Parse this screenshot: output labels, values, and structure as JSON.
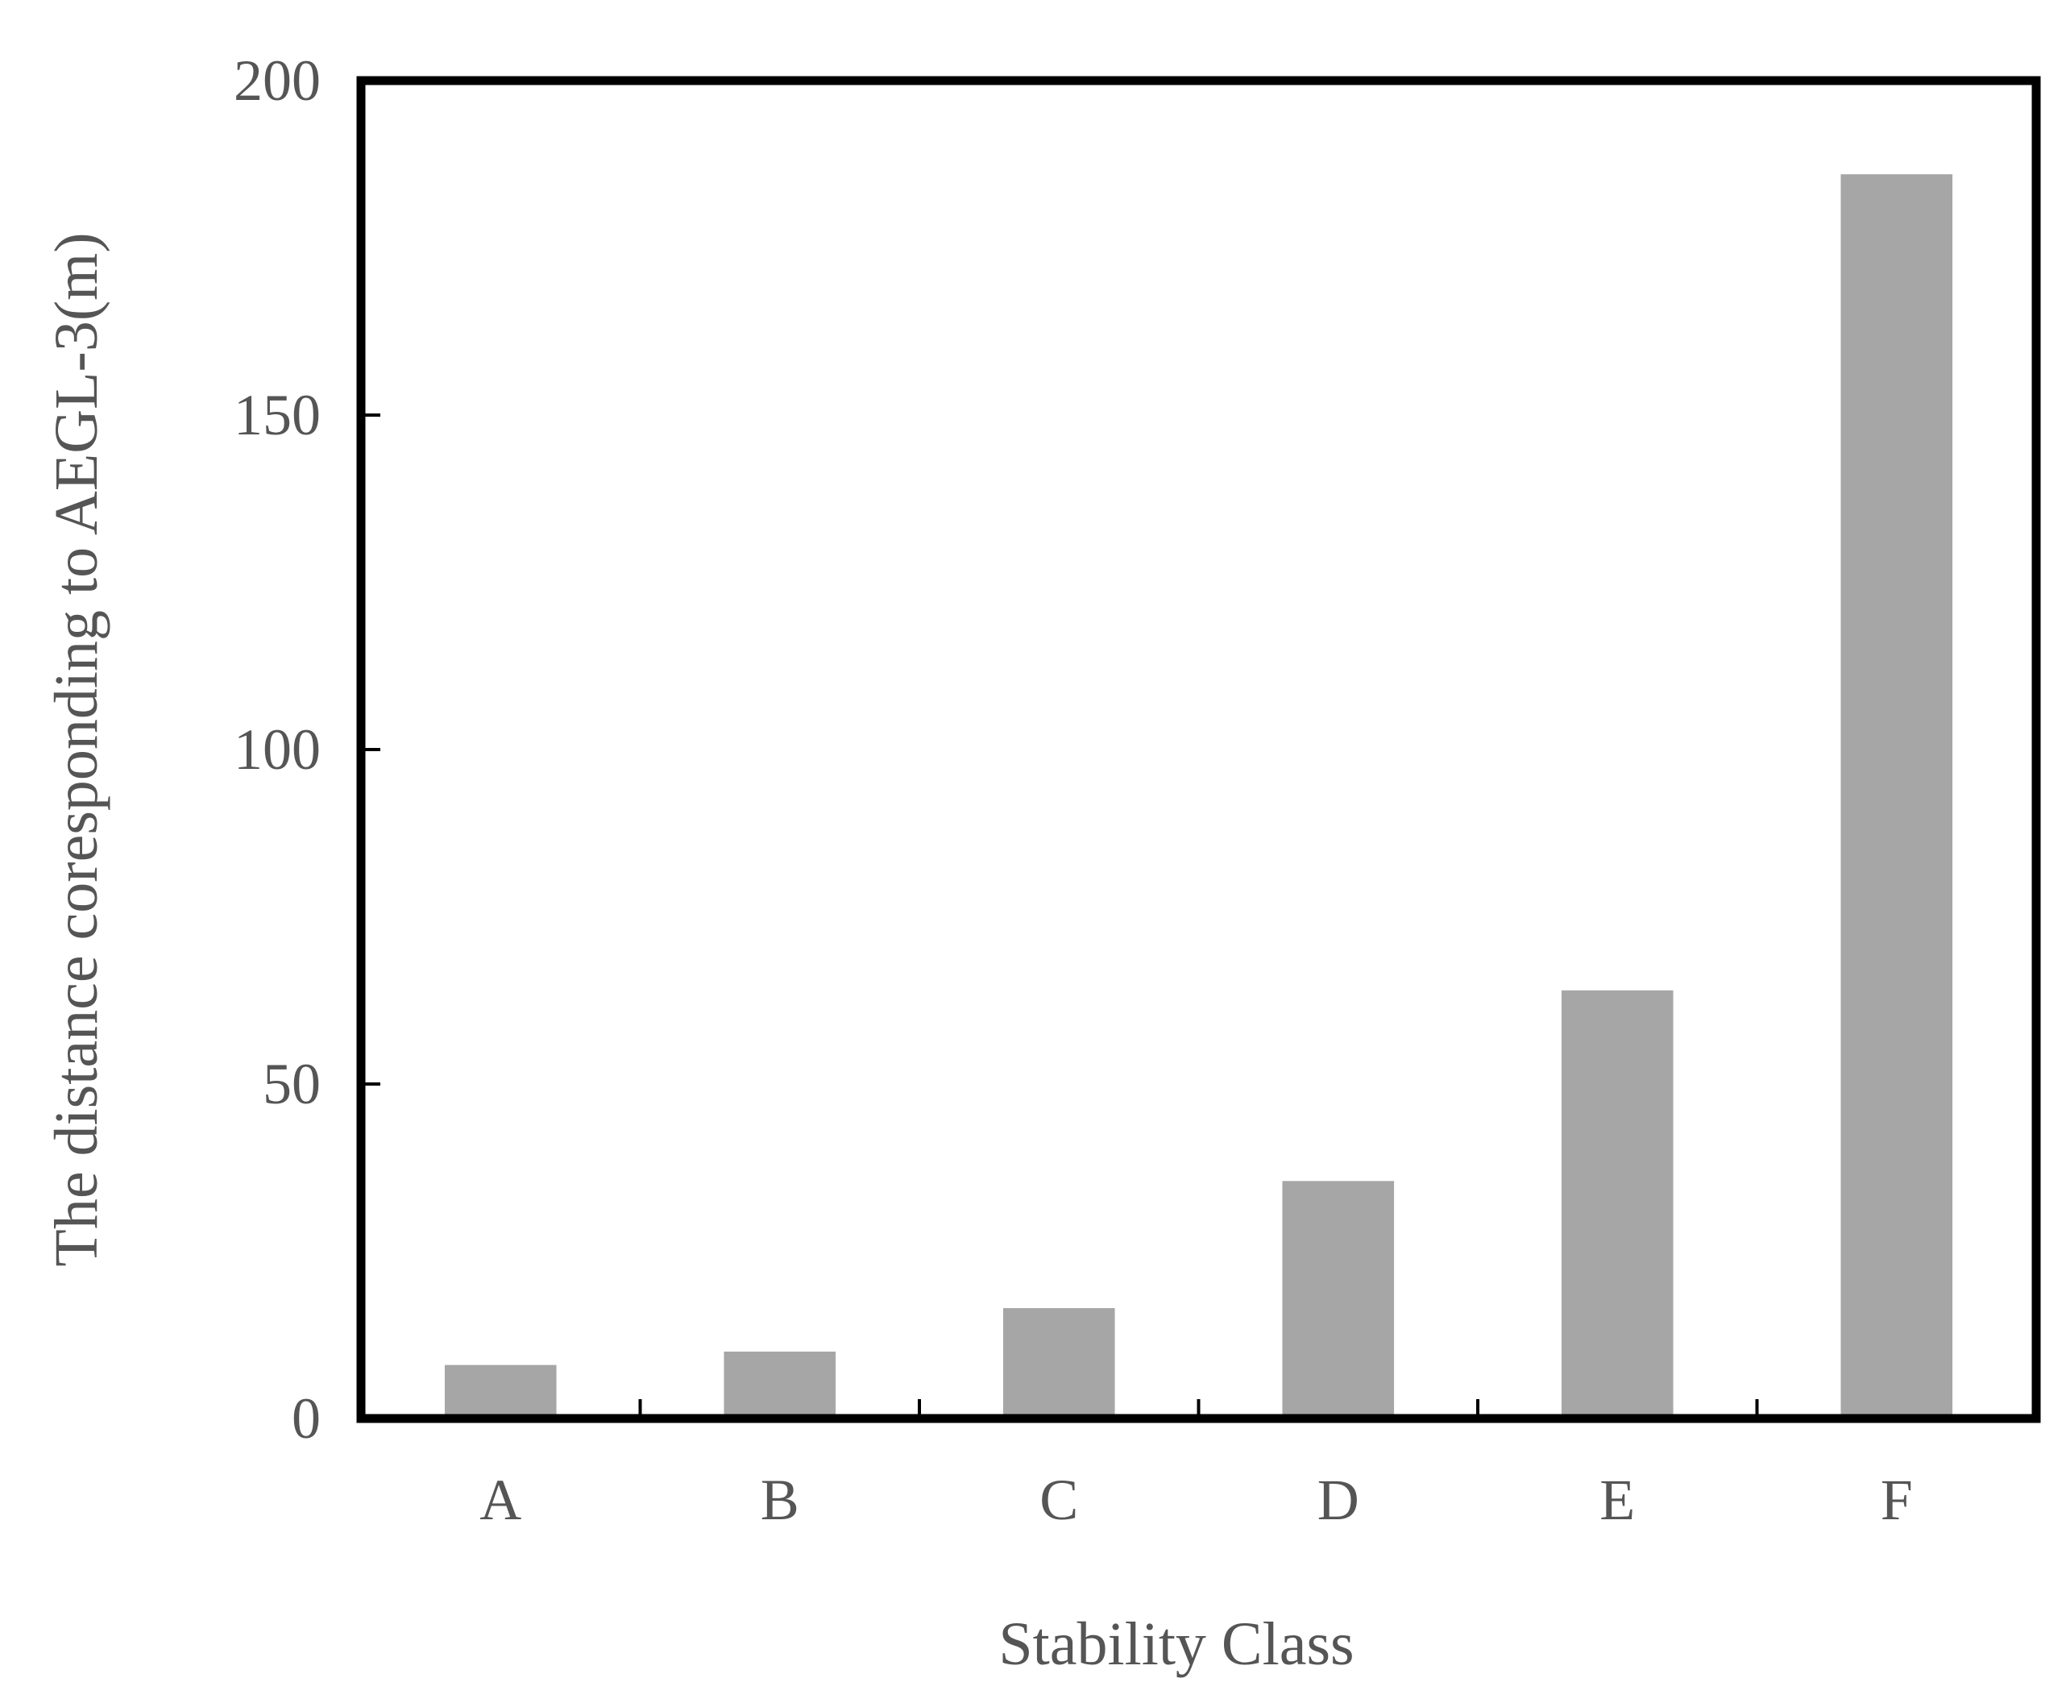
{
  "chart_data": {
    "type": "bar",
    "title": "",
    "xlabel": "Stability Class",
    "ylabel": "The distance coresponding to AEGL-3(m)",
    "categories": [
      "A",
      "B",
      "C",
      "D",
      "E",
      "F"
    ],
    "values": [
      8,
      10,
      16.5,
      35.5,
      64,
      186
    ],
    "ylim": [
      0,
      200
    ],
    "yticks": [
      "0",
      "50",
      "100",
      "150",
      "200"
    ],
    "grid": false,
    "legend": "none",
    "bar_color": "#a6a6a6",
    "frame_color": "#000000",
    "text_color": "#555555"
  }
}
